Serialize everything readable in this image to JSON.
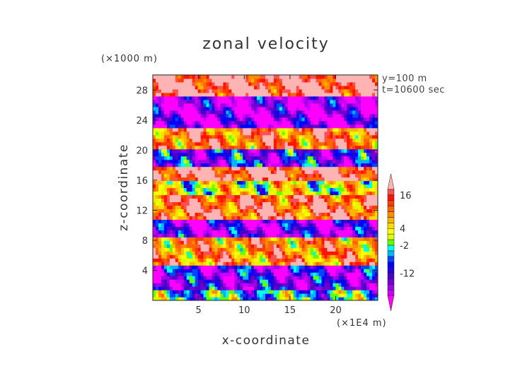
{
  "chart_data": {
    "type": "heatmap",
    "title": "zonal velocity",
    "xlabel": "x-coordinate",
    "ylabel": "z-coordinate",
    "x_unit": "(×1E4 m)",
    "y_unit": "(×1000 m)",
    "annotations": [
      "y=100 m",
      "t=10600 sec"
    ],
    "xlim": [
      0,
      24.6
    ],
    "ylim": [
      0,
      30
    ],
    "x_ticks": [
      5,
      10,
      15,
      20
    ],
    "y_ticks": [
      4,
      8,
      12,
      16,
      20,
      24,
      28
    ],
    "colorbar": {
      "labels": [
        "16",
        "4",
        "-2",
        "-12"
      ],
      "levels": [
        -22,
        -20,
        -18,
        -16,
        -14,
        -12,
        -10,
        -8,
        -6,
        -4,
        -2,
        0,
        2,
        4,
        6,
        8,
        10,
        12,
        14,
        16,
        18,
        20,
        22
      ],
      "colors": [
        "#ff00ff",
        "#c800ff",
        "#a000e6",
        "#6e00d2",
        "#4b00c8",
        "#2000e0",
        "#0000ff",
        "#0046ff",
        "#00b4ff",
        "#00ffe6",
        "#64ff00",
        "#dcff00",
        "#ffff00",
        "#ffdc00",
        "#ffb400",
        "#ff8c00",
        "#ff6400",
        "#ff3c00",
        "#ff1400",
        "#ff5050",
        "#ffb4b4"
      ]
    },
    "bands": [
      {
        "z": [
          0,
          1.5
        ],
        "value": -4
      },
      {
        "z": [
          1.5,
          4.5
        ],
        "value": -14
      },
      {
        "z": [
          4.5,
          8.5
        ],
        "value": 10
      },
      {
        "z": [
          8.5,
          11
        ],
        "value": -16
      },
      {
        "z": [
          11,
          14
        ],
        "value": 14
      },
      {
        "z": [
          14,
          16
        ],
        "value": 2
      },
      {
        "z": [
          16,
          18
        ],
        "value": 18
      },
      {
        "z": [
          18,
          20
        ],
        "value": -12
      },
      {
        "z": [
          20,
          23
        ],
        "value": 12
      },
      {
        "z": [
          23,
          27
        ],
        "value": -18
      },
      {
        "z": [
          27,
          30
        ],
        "value": 19
      }
    ]
  }
}
